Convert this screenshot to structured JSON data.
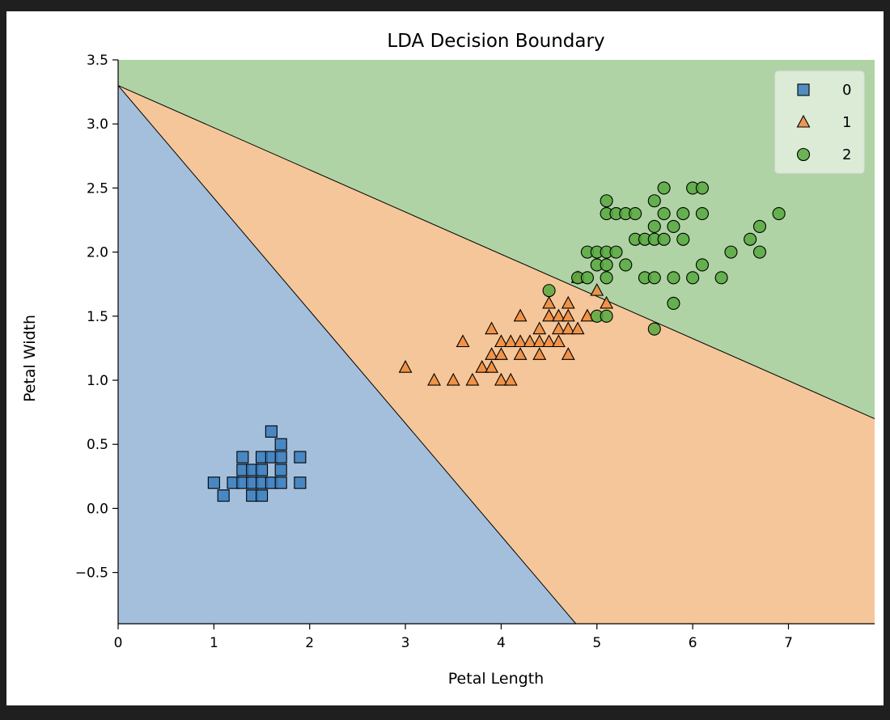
{
  "chart_data": {
    "type": "scatter",
    "title": "LDA Decision Boundary",
    "xlabel": "Petal Length",
    "ylabel": "Petal Width",
    "xlim": [
      0,
      7.9
    ],
    "ylim": [
      -0.9,
      3.5
    ],
    "xticks": [
      0,
      1,
      2,
      3,
      4,
      5,
      6,
      7
    ],
    "yticks": [
      -0.5,
      0.0,
      0.5,
      1.0,
      1.5,
      2.0,
      2.5,
      3.0,
      3.5
    ],
    "ytick_labels": [
      "−0.5",
      "0.0",
      "0.5",
      "1.0",
      "1.5",
      "2.0",
      "2.5",
      "3.0",
      "3.5"
    ],
    "grid": false,
    "legend": {
      "position": "top-right",
      "entries": [
        "0",
        "1",
        "2"
      ]
    },
    "regions": [
      {
        "class": "0",
        "color": "#a3bfdb",
        "polygon": [
          [
            0,
            3.3
          ],
          [
            4.78,
            -0.9
          ],
          [
            0,
            -0.9
          ]
        ]
      },
      {
        "class": "1",
        "color": "#f5c699",
        "polygon": [
          [
            0,
            3.3
          ],
          [
            7.9,
            0.7
          ],
          [
            7.9,
            -0.9
          ],
          [
            4.78,
            -0.9
          ]
        ]
      },
      {
        "class": "2",
        "color": "#b0d3a5",
        "polygon": [
          [
            0,
            3.3
          ],
          [
            0,
            3.5
          ],
          [
            7.9,
            3.5
          ],
          [
            7.9,
            0.7
          ]
        ]
      }
    ],
    "boundaries": [
      {
        "from": [
          0,
          3.3
        ],
        "to": [
          4.78,
          -0.9
        ]
      },
      {
        "from": [
          0,
          3.3
        ],
        "to": [
          7.9,
          0.7
        ]
      }
    ],
    "series": [
      {
        "name": "0",
        "marker": "square",
        "color": "#3a7cbd",
        "points": [
          [
            1.0,
            0.2
          ],
          [
            1.1,
            0.1
          ],
          [
            1.2,
            0.2
          ],
          [
            1.3,
            0.2
          ],
          [
            1.3,
            0.3
          ],
          [
            1.3,
            0.4
          ],
          [
            1.4,
            0.1
          ],
          [
            1.4,
            0.2
          ],
          [
            1.4,
            0.3
          ],
          [
            1.5,
            0.1
          ],
          [
            1.5,
            0.2
          ],
          [
            1.5,
            0.3
          ],
          [
            1.5,
            0.4
          ],
          [
            1.6,
            0.2
          ],
          [
            1.6,
            0.4
          ],
          [
            1.6,
            0.6
          ],
          [
            1.7,
            0.2
          ],
          [
            1.7,
            0.3
          ],
          [
            1.7,
            0.4
          ],
          [
            1.7,
            0.5
          ],
          [
            1.9,
            0.2
          ],
          [
            1.9,
            0.4
          ]
        ]
      },
      {
        "name": "1",
        "marker": "triangle",
        "color": "#ef8a3a",
        "points": [
          [
            3.0,
            1.1
          ],
          [
            3.3,
            1.0
          ],
          [
            3.5,
            1.0
          ],
          [
            3.6,
            1.3
          ],
          [
            3.7,
            1.0
          ],
          [
            3.8,
            1.1
          ],
          [
            3.9,
            1.1
          ],
          [
            3.9,
            1.2
          ],
          [
            3.9,
            1.4
          ],
          [
            4.0,
            1.0
          ],
          [
            4.0,
            1.2
          ],
          [
            4.0,
            1.3
          ],
          [
            4.1,
            1.0
          ],
          [
            4.1,
            1.3
          ],
          [
            4.2,
            1.2
          ],
          [
            4.2,
            1.3
          ],
          [
            4.2,
            1.5
          ],
          [
            4.3,
            1.3
          ],
          [
            4.4,
            1.2
          ],
          [
            4.4,
            1.3
          ],
          [
            4.4,
            1.4
          ],
          [
            4.5,
            1.3
          ],
          [
            4.5,
            1.5
          ],
          [
            4.5,
            1.6
          ],
          [
            4.6,
            1.3
          ],
          [
            4.6,
            1.4
          ],
          [
            4.6,
            1.5
          ],
          [
            4.7,
            1.2
          ],
          [
            4.7,
            1.4
          ],
          [
            4.7,
            1.5
          ],
          [
            4.7,
            1.6
          ],
          [
            4.8,
            1.4
          ],
          [
            4.8,
            1.8
          ],
          [
            4.9,
            1.5
          ],
          [
            5.0,
            1.7
          ],
          [
            5.1,
            1.6
          ]
        ]
      },
      {
        "name": "2",
        "marker": "circle",
        "color": "#57a83e",
        "points": [
          [
            4.5,
            1.7
          ],
          [
            4.8,
            1.8
          ],
          [
            4.9,
            1.8
          ],
          [
            4.9,
            2.0
          ],
          [
            5.0,
            1.5
          ],
          [
            5.0,
            1.9
          ],
          [
            5.0,
            2.0
          ],
          [
            5.1,
            1.5
          ],
          [
            5.1,
            1.8
          ],
          [
            5.1,
            1.9
          ],
          [
            5.1,
            2.0
          ],
          [
            5.1,
            2.3
          ],
          [
            5.1,
            2.4
          ],
          [
            5.2,
            2.0
          ],
          [
            5.2,
            2.3
          ],
          [
            5.3,
            1.9
          ],
          [
            5.3,
            2.3
          ],
          [
            5.4,
            2.1
          ],
          [
            5.4,
            2.3
          ],
          [
            5.5,
            1.8
          ],
          [
            5.5,
            2.1
          ],
          [
            5.6,
            1.4
          ],
          [
            5.6,
            1.8
          ],
          [
            5.6,
            2.1
          ],
          [
            5.6,
            2.2
          ],
          [
            5.6,
            2.4
          ],
          [
            5.7,
            2.1
          ],
          [
            5.7,
            2.3
          ],
          [
            5.7,
            2.5
          ],
          [
            5.8,
            1.6
          ],
          [
            5.8,
            1.8
          ],
          [
            5.8,
            2.2
          ],
          [
            5.9,
            2.1
          ],
          [
            5.9,
            2.3
          ],
          [
            6.0,
            1.8
          ],
          [
            6.0,
            2.5
          ],
          [
            6.1,
            1.9
          ],
          [
            6.1,
            2.3
          ],
          [
            6.1,
            2.5
          ],
          [
            6.3,
            1.8
          ],
          [
            6.4,
            2.0
          ],
          [
            6.6,
            2.1
          ],
          [
            6.7,
            2.0
          ],
          [
            6.7,
            2.2
          ],
          [
            6.9,
            2.3
          ]
        ]
      }
    ]
  }
}
